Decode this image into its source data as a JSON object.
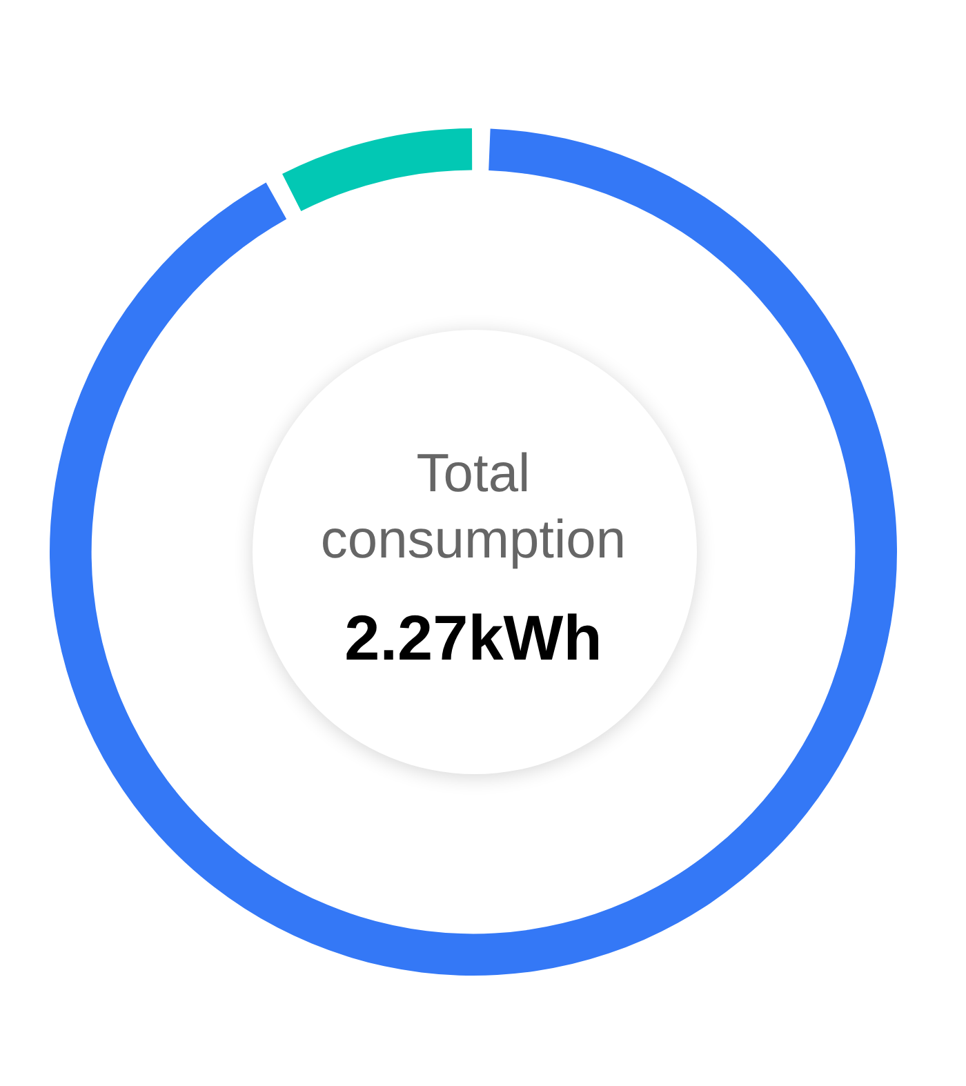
{
  "chart_data": {
    "type": "donut",
    "title": "Total consumption",
    "subtitle": "2.27kWh",
    "categories": [
      null,
      null
    ],
    "values": [
      92.5,
      7.5
    ],
    "colors": [
      "#3478f6",
      "#02c8b4"
    ],
    "legend": false
  }
}
